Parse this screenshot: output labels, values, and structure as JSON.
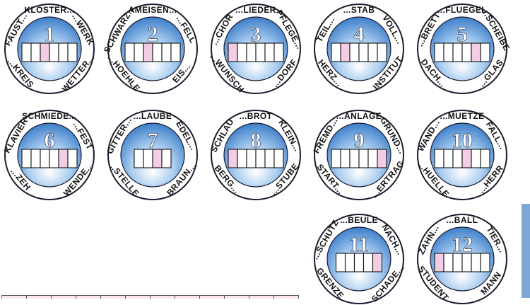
{
  "colors": {
    "ring_outline": "#1a1a2e",
    "disc_light": "#ffffff",
    "disc_dark": "#3d7ec9",
    "cell_white": "#ffffff",
    "cell_pink": "#f2cde3",
    "side_bar": "#7ea6d6"
  },
  "puzzles": [
    {
      "number": "1",
      "cells": 6,
      "highlight": 3,
      "words": [
        "FAUST...",
        "KLOSTER...",
        "...WERK",
        "WETTER...",
        "...KREIS"
      ]
    },
    {
      "number": "2",
      "cells": 6,
      "highlight": 3,
      "words": [
        "SCHWARZ...",
        "AMEISEN...",
        "...FELL",
        "EIS...",
        "...HOEHLE"
      ]
    },
    {
      "number": "3",
      "cells": 6,
      "highlight": 1,
      "words": [
        "...CHOR",
        "...LIEDER",
        "PFLEGE...",
        "...DORF",
        "...WUNSCH"
      ]
    },
    {
      "number": "4",
      "cells": 6,
      "highlight": 2,
      "words": [
        "TEIL...",
        "...STAB",
        "VOLL...",
        "INSTITUT",
        "HERZ..."
      ]
    },
    {
      "number": "5",
      "cells": 6,
      "highlight": 5,
      "words": [
        "...BRETT",
        "...FLUEGEL",
        "...SCHEIBE",
        "...GLAS",
        "DACH..."
      ]
    },
    {
      "number": "6",
      "cells": 6,
      "highlight": 5,
      "words": [
        "KLAVIER",
        "SCHMIEDE...",
        "...FEST",
        "WENDE...",
        "...ZEH"
      ]
    },
    {
      "number": "7",
      "cells": 4,
      "highlight": 3,
      "words": [
        "GITTER...",
        "...LAUBE",
        "EDEL...",
        "BRAUN...",
        "...STELLE"
      ]
    },
    {
      "number": "8",
      "cells": 6,
      "highlight": 1,
      "words": [
        "SCHLAU",
        "...BROT",
        "KLEIN...",
        "...STUBE",
        "BERG..."
      ]
    },
    {
      "number": "9",
      "cells": 6,
      "highlight": 6,
      "words": [
        "FREMD...",
        "...ANLAGE",
        "GRUND...",
        "...ERTRAG",
        "START..."
      ]
    },
    {
      "number": "10",
      "cells": 6,
      "highlight": 4,
      "words": [
        "WAND...",
        "...MUETZE",
        "FALL...",
        "...HERR",
        "...HUELLE"
      ]
    },
    {
      "number": "11",
      "cells": 5,
      "highlight": 5,
      "words": [
        "...SCHUTZ",
        "...BEULE",
        "NACH...",
        "SCHADE...",
        "GRENZE"
      ]
    },
    {
      "number": "12",
      "cells": 6,
      "highlight": 1,
      "words": [
        "ZAHN...",
        "...BALL",
        "TIER...",
        "MANN",
        "STUDENT"
      ]
    }
  ]
}
